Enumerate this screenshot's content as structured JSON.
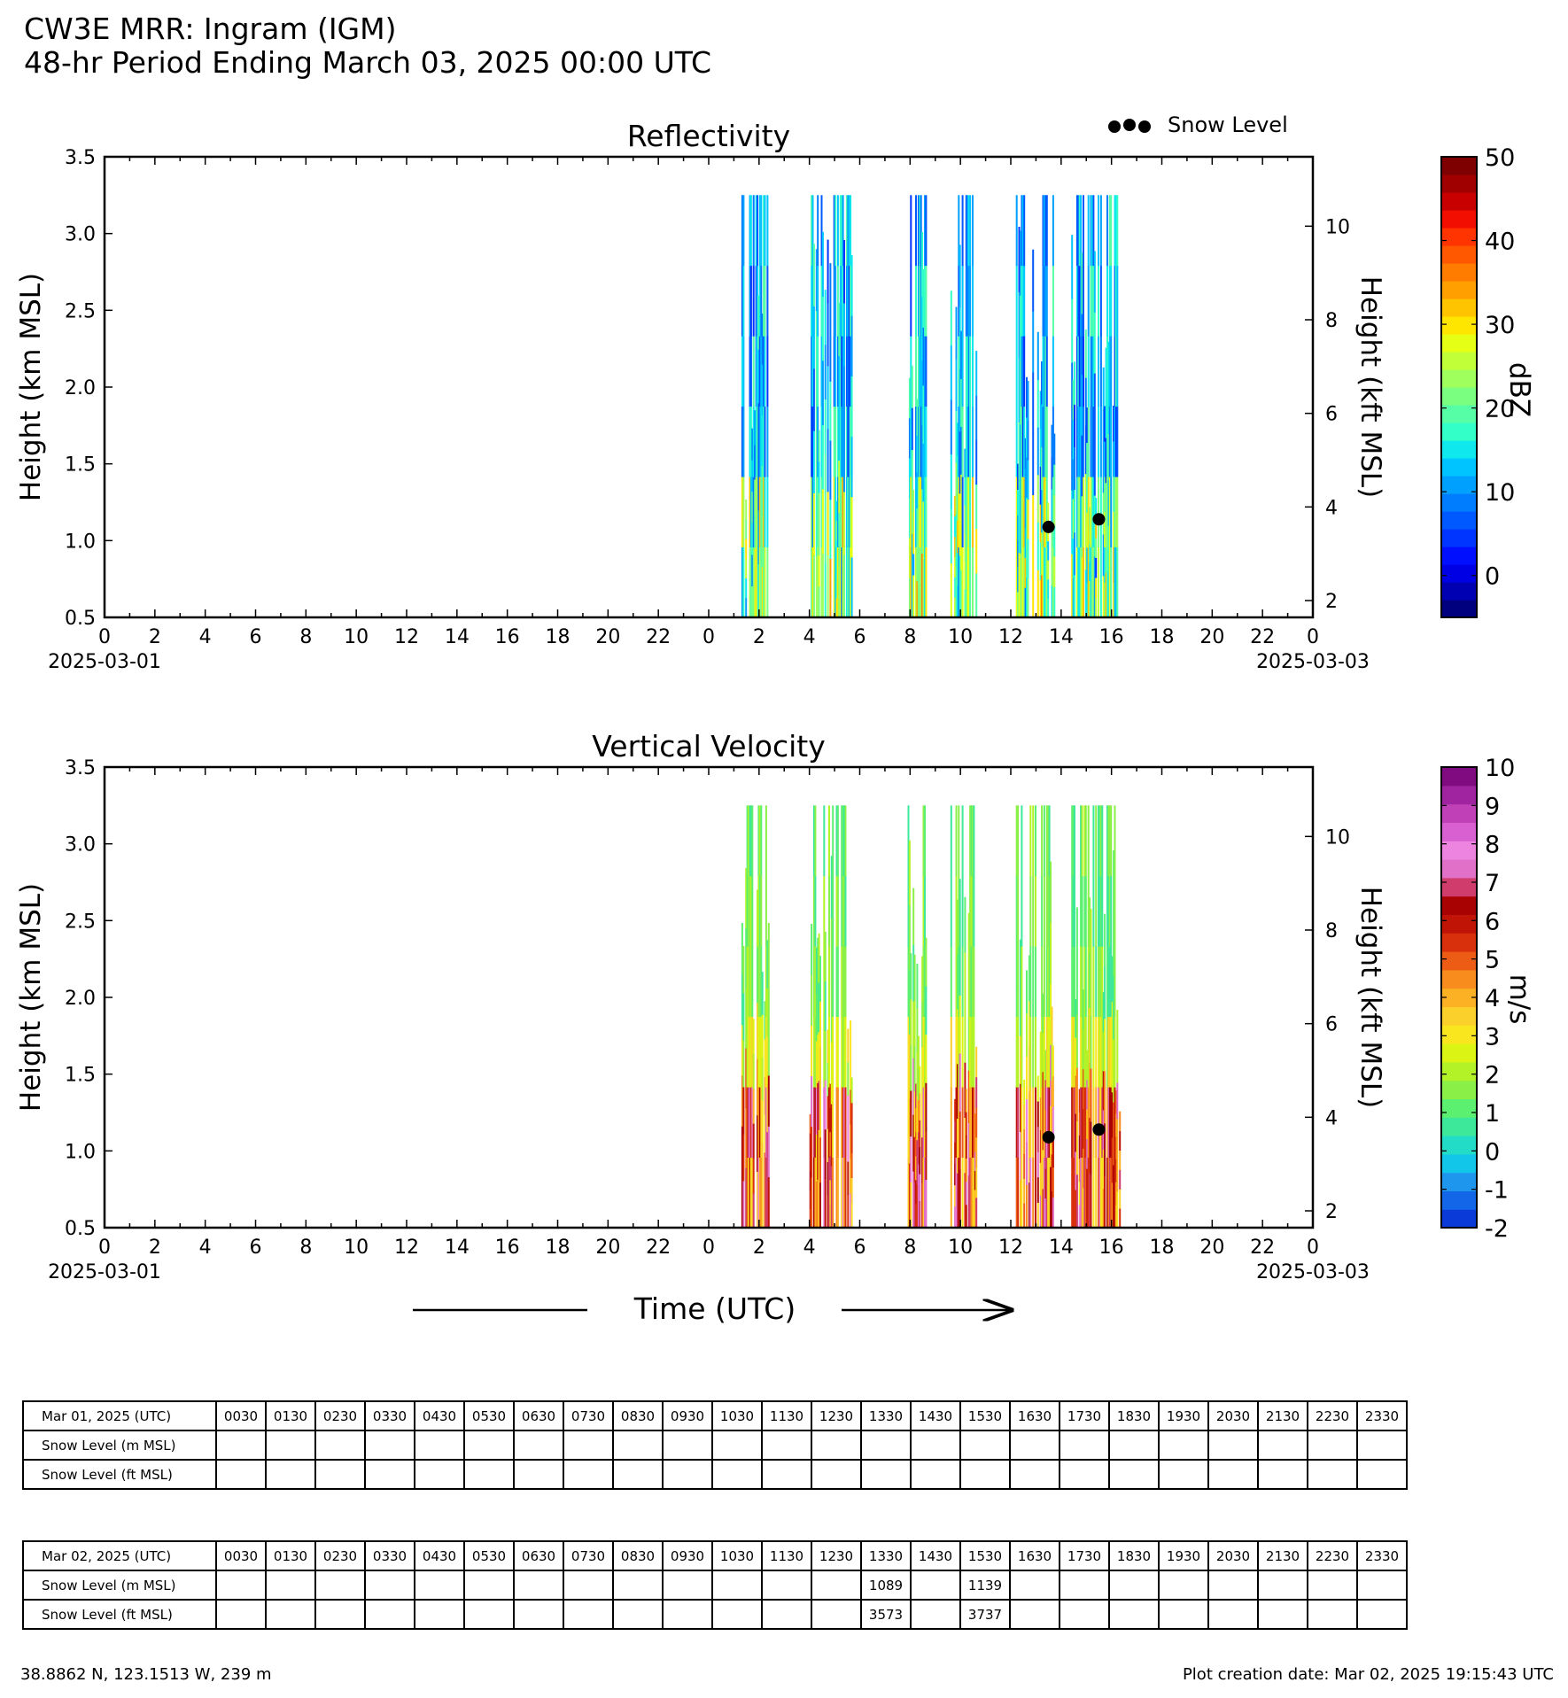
{
  "header": {
    "title": "CW3E MRR: Ingram (IGM)",
    "subtitle": "48-hr Period Ending March 03, 2025 00:00 UTC"
  },
  "chart_data": [
    {
      "type": "heatmap",
      "title": "Reflectivity",
      "ylabel": "Height (km MSL)",
      "ylabel_right": "Height (kft MSL)",
      "ylim": [
        0.5,
        3.5
      ],
      "yticks": [
        "0.5",
        "1.0",
        "1.5",
        "2.0",
        "2.5",
        "3.0",
        "3.5"
      ],
      "yticks_right": [
        "2",
        "4",
        "6",
        "8",
        "10"
      ],
      "xlim_hours": [
        0,
        48
      ],
      "xticks": [
        "0",
        "2",
        "4",
        "6",
        "8",
        "10",
        "12",
        "14",
        "16",
        "18",
        "20",
        "22",
        "0",
        "2",
        "4",
        "6",
        "8",
        "10",
        "12",
        "14",
        "16",
        "18",
        "20",
        "22",
        "0"
      ],
      "date_start": "2025-03-01",
      "date_end": "2025-03-03",
      "colorbar": {
        "label": "dBZ",
        "min": -5,
        "max": 50,
        "ticks": [
          "0",
          "10",
          "20",
          "30",
          "40",
          "50"
        ]
      },
      "legend": {
        "label": "Snow Level",
        "position": "top-right"
      },
      "snow_level_points": [
        {
          "hour": 37.5,
          "km": 1.089
        },
        {
          "hour": 39.5,
          "km": 1.139
        }
      ],
      "echo_periods_hours": [
        [
          25.3,
          26.4
        ],
        [
          28.0,
          29.7
        ],
        [
          31.9,
          32.6
        ],
        [
          33.6,
          34.6
        ],
        [
          36.2,
          37.7
        ],
        [
          38.4,
          40.3
        ]
      ]
    },
    {
      "type": "heatmap",
      "title": "Vertical Velocity",
      "ylabel": "Height (km MSL)",
      "ylabel_right": "Height (kft MSL)",
      "xlabel": "Time (UTC)",
      "ylim": [
        0.5,
        3.5
      ],
      "yticks": [
        "0.5",
        "1.0",
        "1.5",
        "2.0",
        "2.5",
        "3.0",
        "3.5"
      ],
      "yticks_right": [
        "2",
        "4",
        "6",
        "8",
        "10"
      ],
      "xlim_hours": [
        0,
        48
      ],
      "xticks": [
        "0",
        "2",
        "4",
        "6",
        "8",
        "10",
        "12",
        "14",
        "16",
        "18",
        "20",
        "22",
        "0",
        "2",
        "4",
        "6",
        "8",
        "10",
        "12",
        "14",
        "16",
        "18",
        "20",
        "22",
        "0"
      ],
      "date_start": "2025-03-01",
      "date_end": "2025-03-03",
      "colorbar": {
        "label": "m/s",
        "min": -2,
        "max": 10,
        "ticks": [
          "-2",
          "-1",
          "0",
          "1",
          "2",
          "3",
          "4",
          "5",
          "6",
          "7",
          "8",
          "9",
          "10"
        ]
      },
      "snow_level_points": [
        {
          "hour": 37.5,
          "km": 1.089
        },
        {
          "hour": 39.5,
          "km": 1.139
        }
      ],
      "echo_periods_hours": [
        [
          25.3,
          26.4
        ],
        [
          28.0,
          29.7
        ],
        [
          31.9,
          32.6
        ],
        [
          33.6,
          34.6
        ],
        [
          36.2,
          37.7
        ],
        [
          38.4,
          40.3
        ]
      ]
    }
  ],
  "tables": [
    {
      "date_label": "Mar 01, 2025 (UTC)",
      "times": [
        "0030",
        "0130",
        "0230",
        "0330",
        "0430",
        "0530",
        "0630",
        "0730",
        "0830",
        "0930",
        "1030",
        "1130",
        "1230",
        "1330",
        "1430",
        "1530",
        "1630",
        "1730",
        "1830",
        "1930",
        "2030",
        "2130",
        "2230",
        "2330"
      ],
      "rows": [
        {
          "label": "Snow Level (m MSL)",
          "values": [
            "",
            "",
            "",
            "",
            "",
            "",
            "",
            "",
            "",
            "",
            "",
            "",
            "",
            "",
            "",
            "",
            "",
            "",
            "",
            "",
            "",
            "",
            "",
            ""
          ]
        },
        {
          "label": "Snow Level (ft MSL)",
          "values": [
            "",
            "",
            "",
            "",
            "",
            "",
            "",
            "",
            "",
            "",
            "",
            "",
            "",
            "",
            "",
            "",
            "",
            "",
            "",
            "",
            "",
            "",
            "",
            ""
          ]
        }
      ]
    },
    {
      "date_label": "Mar 02, 2025 (UTC)",
      "times": [
        "0030",
        "0130",
        "0230",
        "0330",
        "0430",
        "0530",
        "0630",
        "0730",
        "0830",
        "0930",
        "1030",
        "1130",
        "1230",
        "1330",
        "1430",
        "1530",
        "1630",
        "1730",
        "1830",
        "1930",
        "2030",
        "2130",
        "2230",
        "2330"
      ],
      "rows": [
        {
          "label": "Snow Level (m MSL)",
          "values": [
            "",
            "",
            "",
            "",
            "",
            "",
            "",
            "",
            "",
            "",
            "",
            "",
            "",
            "1089",
            "",
            "1139",
            "",
            "",
            "",
            "",
            "",
            "",
            "",
            ""
          ]
        },
        {
          "label": "Snow Level (ft MSL)",
          "values": [
            "",
            "",
            "",
            "",
            "",
            "",
            "",
            "",
            "",
            "",
            "",
            "",
            "",
            "3573",
            "",
            "3737",
            "",
            "",
            "",
            "",
            "",
            "",
            "",
            ""
          ]
        }
      ]
    }
  ],
  "footer": {
    "location": "38.8862 N, 123.1513 W, 239 m",
    "created": "Plot creation date: Mar 02, 2025 19:15:43 UTC"
  }
}
